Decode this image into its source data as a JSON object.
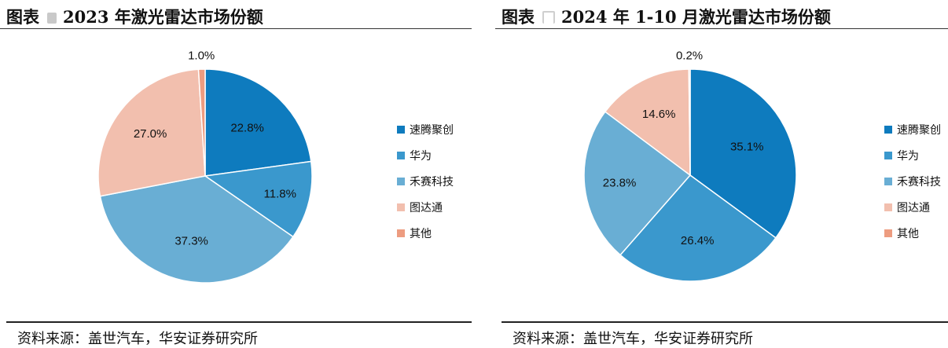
{
  "colors": {
    "速腾聚创": "#0E7BBE",
    "华为": "#3A98CD",
    "禾赛科技": "#69AED4",
    "图达通": "#F2BFAE",
    "其他": "#ED9C80"
  },
  "left": {
    "title_prefix": "图表",
    "title_text": "2023 年激光雷达市场份额",
    "source": "资料来源：盖世汽车，华安证券研究所"
  },
  "right": {
    "title_prefix": "图表",
    "title_text": "2024 年 1-10 月激光雷达市场份额",
    "source": "资料来源：盖世汽车，华安证券研究所"
  },
  "chart_data": [
    {
      "type": "pie",
      "title": "2023 年激光雷达市场份额",
      "legend_position": "right",
      "slices": [
        {
          "name": "速腾聚创",
          "value": 22.8,
          "label": "22.8%"
        },
        {
          "name": "华为",
          "value": 11.8,
          "label": "11.8%"
        },
        {
          "name": "禾赛科技",
          "value": 37.3,
          "label": "37.3%"
        },
        {
          "name": "图达通",
          "value": 27.0,
          "label": "27.0%"
        },
        {
          "name": "其他",
          "value": 1.0,
          "label": "1.0%"
        }
      ]
    },
    {
      "type": "pie",
      "title": "2024 年 1-10 月激光雷达市场份额",
      "legend_position": "right",
      "slices": [
        {
          "name": "速腾聚创",
          "value": 35.1,
          "label": "35.1%"
        },
        {
          "name": "华为",
          "value": 26.4,
          "label": "26.4%"
        },
        {
          "name": "禾赛科技",
          "value": 23.8,
          "label": "23.8%"
        },
        {
          "name": "图达通",
          "value": 14.6,
          "label": "14.6%"
        },
        {
          "name": "其他",
          "value": 0.2,
          "label": "0.2%"
        }
      ]
    }
  ]
}
